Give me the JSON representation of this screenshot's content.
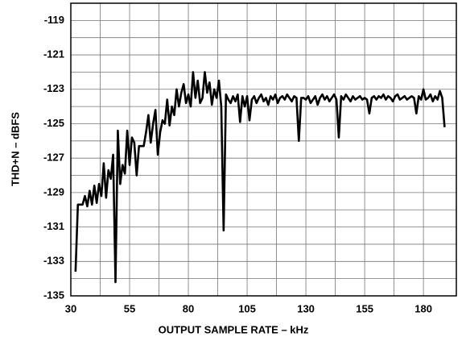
{
  "chart_data": {
    "type": "line",
    "xlabel": "OUTPUT SAMPLE RATE – kHz",
    "ylabel": "THD+N – dBFS",
    "xlim": [
      30,
      194
    ],
    "ylim": [
      -135,
      -118
    ],
    "xticks": [
      30,
      55,
      80,
      105,
      130,
      155,
      180
    ],
    "yticks": [
      -135,
      -133,
      -131,
      -129,
      -127,
      -125,
      -123,
      -121,
      -119
    ],
    "x_minor_ticks": [
      42.5,
      67.5,
      92.5,
      117.5,
      142.5,
      167.5
    ],
    "y_minor_ticks": [
      -134,
      -132,
      -130,
      -128,
      -126,
      -124,
      -122,
      -120
    ],
    "grid": true,
    "x": [
      32,
      33,
      34,
      35,
      36,
      37,
      38,
      39,
      40,
      41,
      42,
      43,
      44,
      45,
      46,
      47,
      48,
      49,
      50,
      51,
      52,
      53,
      54,
      55,
      56,
      57,
      58,
      59,
      60,
      61,
      62,
      63,
      64,
      65,
      66,
      67,
      68,
      69,
      70,
      71,
      72,
      73,
      74,
      75,
      76,
      77,
      78,
      79,
      80,
      81,
      82,
      83,
      84,
      85,
      86,
      87,
      88,
      89,
      90,
      91,
      92,
      93,
      94,
      95,
      96,
      97,
      98,
      99,
      100,
      101,
      102,
      103,
      104,
      105,
      106,
      107,
      108,
      109,
      110,
      111,
      112,
      113,
      114,
      115,
      116,
      117,
      118,
      119,
      120,
      121,
      122,
      123,
      124,
      125,
      126,
      127,
      128,
      129,
      130,
      131,
      132,
      133,
      134,
      135,
      136,
      137,
      138,
      139,
      140,
      141,
      142,
      143,
      144,
      145,
      146,
      147,
      148,
      149,
      150,
      151,
      152,
      153,
      154,
      155,
      156,
      157,
      158,
      159,
      160,
      161,
      162,
      163,
      164,
      165,
      166,
      167,
      168,
      169,
      170,
      171,
      172,
      173,
      174,
      175,
      176,
      177,
      178,
      179,
      180,
      181,
      182,
      183,
      184,
      185,
      186,
      187,
      188,
      189
    ],
    "series": [
      {
        "color": "#000000",
        "values": [
          -133.6,
          -129.7,
          -129.7,
          -129.7,
          -129.2,
          -129.8,
          -128.9,
          -129.7,
          -128.6,
          -129.6,
          -128.5,
          -129.2,
          -127.3,
          -129.3,
          -127.7,
          -128.2,
          -126.8,
          -134.2,
          -125.4,
          -128.5,
          -127.4,
          -127.9,
          -125.4,
          -127.4,
          -125.8,
          -126.1,
          -128.0,
          -126.3,
          -126.3,
          -126.3,
          -125.5,
          -124.5,
          -126.1,
          -125.0,
          -124.2,
          -126.8,
          -125.5,
          -124.8,
          -125.0,
          -123.6,
          -125.1,
          -124.0,
          -124.5,
          -123.0,
          -124.0,
          -123.2,
          -122.7,
          -123.8,
          -123.3,
          -124.0,
          -122.0,
          -123.5,
          -122.5,
          -123.8,
          -123.5,
          -122.0,
          -123.2,
          -122.6,
          -123.9,
          -123.0,
          -123.5,
          -122.5,
          -124.0,
          -131.2,
          -123.3,
          -123.6,
          -123.8,
          -123.4,
          -123.7,
          -123.3,
          -124.9,
          -123.4,
          -124.0,
          -123.4,
          -124.8,
          -123.6,
          -123.4,
          -123.8,
          -123.5,
          -123.3,
          -123.7,
          -123.5,
          -123.9,
          -123.4,
          -123.6,
          -123.3,
          -123.8,
          -123.5,
          -123.4,
          -123.6,
          -123.3,
          -123.5,
          -123.7,
          -123.4,
          -123.5,
          -126.0,
          -123.5,
          -123.5,
          -123.6,
          -123.4,
          -123.8,
          -123.6,
          -123.4,
          -123.9,
          -123.5,
          -123.3,
          -123.6,
          -123.4,
          -123.7,
          -123.5,
          -123.3,
          -123.6,
          -125.8,
          -123.4,
          -123.6,
          -123.3,
          -123.5,
          -123.7,
          -123.4,
          -123.6,
          -123.5,
          -123.4,
          -123.6,
          -123.5,
          -123.6,
          -124.4,
          -123.5,
          -123.4,
          -123.6,
          -123.4,
          -123.5,
          -123.3,
          -123.6,
          -123.4,
          -123.5,
          -123.7,
          -123.4,
          -123.3,
          -123.6,
          -123.5,
          -123.4,
          -123.6,
          -123.5,
          -123.4,
          -123.5,
          -124.4,
          -123.4,
          -123.6,
          -123.0,
          -123.6,
          -123.5,
          -123.3,
          -123.7,
          -123.4,
          -123.6,
          -123.1,
          -123.5,
          -125.2
        ]
      }
    ]
  }
}
